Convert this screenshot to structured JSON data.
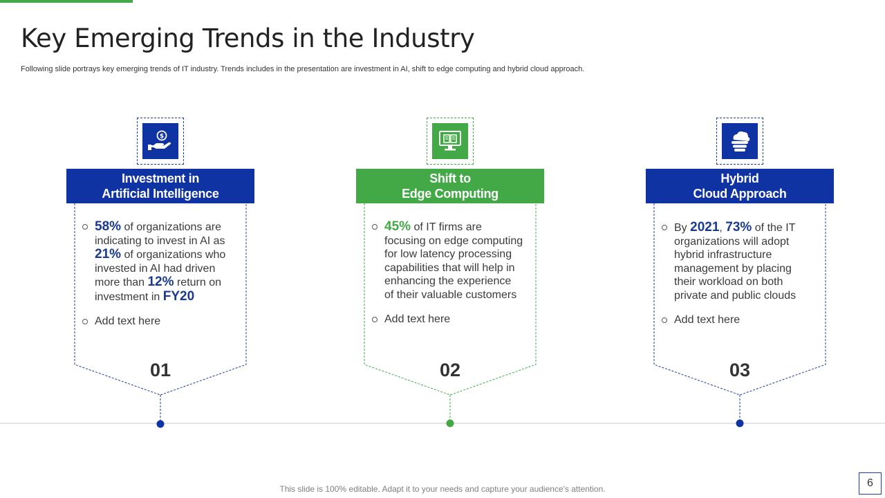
{
  "slide": {
    "title": "Key Emerging Trends in the Industry",
    "subtitle": "Following slide portrays key emerging trends of IT industry. Trends includes in the presentation are investment in AI,  shift to edge computing and hybrid cloud approach.",
    "footer": "This slide is 100% editable. Adapt it to your needs and capture your audience's attention.",
    "page_number": "6"
  },
  "colors": {
    "blue": "#0f33a3",
    "green": "#43a947"
  },
  "cards": [
    {
      "icon": "money-hand-icon",
      "header_line1": "Investment in",
      "header_line2": "Artificial Intelligence",
      "number": "01",
      "b1": {
        "v1": "58%",
        "t1": " of organizations are indicating to invest  in AI as ",
        "v2": "21%",
        "t2": " of organizations who invested in AI had driven more than ",
        "v3": "12%",
        "t3": " return  on investment  in ",
        "v4": "FY20"
      },
      "b2": "Add text here"
    },
    {
      "icon": "edge-computer-icon",
      "header_line1": "Shift to",
      "header_line2": "Edge Computing",
      "number": "02",
      "b1": {
        "v1": "45%",
        "t1": " of IT  firms are focusing on edge computing for low latency processing capabilities that will help in enhancing the experience of their valuable  customers"
      },
      "b2": "Add text here"
    },
    {
      "icon": "cloud-stack-icon",
      "header_line1": "Hybrid",
      "header_line2": "Cloud Approach",
      "number": "03",
      "b1": {
        "t0": "By ",
        "v1": "2021",
        "t1": ", ",
        "v2": "73%",
        "t2": " of the IT organizations will adopt hybrid infrastructure management by placing their workload on both private and public clouds"
      },
      "b2": "Add text here"
    }
  ]
}
